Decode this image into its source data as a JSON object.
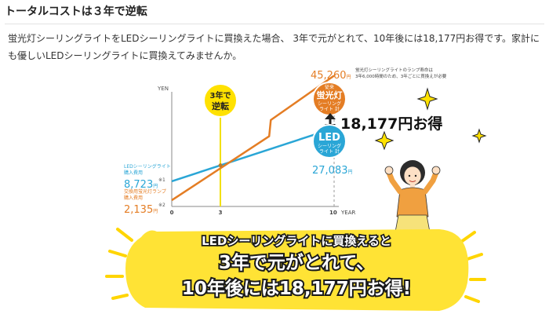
{
  "header": {
    "title": "トータルコストは３年で逆転"
  },
  "intro": {
    "text": "蛍光灯シーリングライトをLEDシーリングライトに買換えた場合、 3年で元がとれて、10年後には18,177円お得です。家計にも優しいLEDシーリングライトに買換えてみませんか。"
  },
  "chart_data": {
    "type": "line",
    "y_unit": "YEN",
    "x_unit": "YEAR",
    "x_ticks": [
      "0",
      "3",
      "10"
    ],
    "xlim": [
      0,
      10
    ],
    "ylim": [
      0,
      47000
    ],
    "series": [
      {
        "name_lines": [
          "LED",
          "シーリング",
          "ライト 計"
        ],
        "color": "#2aa6d6",
        "points": [
          [
            0,
            8723
          ],
          [
            10,
            27083
          ]
        ],
        "end_value": "27,083",
        "end_unit": "円",
        "start_label_lines": [
          "LEDシーリングライト",
          "購入費用"
        ],
        "start_value": "8,723",
        "start_unit": "円",
        "start_note": "※1"
      },
      {
        "name_lines": [
          "従来",
          "蛍光灯",
          "シーリング",
          "ライト 計"
        ],
        "color": "#e47d24",
        "points": [
          [
            0,
            2135
          ],
          [
            6,
            24300
          ],
          [
            6.1,
            29900
          ],
          [
            10,
            45260
          ]
        ],
        "end_value": "45,260",
        "end_unit": "円",
        "start_label_lines": [
          "交換用蛍光灯ランプ",
          "購入費用"
        ],
        "start_value": "2,135",
        "start_unit": "円",
        "start_note": "※2"
      }
    ],
    "crossover": {
      "x": 3,
      "label_lines": [
        "3年で",
        "逆転"
      ]
    },
    "annotation_lines": [
      "蛍光灯シーリングライトのランプ寿命は",
      "3年6,000時間のため、3年ごとに買換えが必要"
    ],
    "difference_label": "18,177円お得",
    "banner_lines": [
      "LEDシーリングライトに買換えると",
      "3年で元がとれて、",
      "10年後には18,177円お得!"
    ],
    "colors": {
      "led": "#2aa6d6",
      "fluorescent": "#e47d24",
      "accent_yellow": "#ffe100",
      "banner_yellow": "#ffe335"
    }
  }
}
